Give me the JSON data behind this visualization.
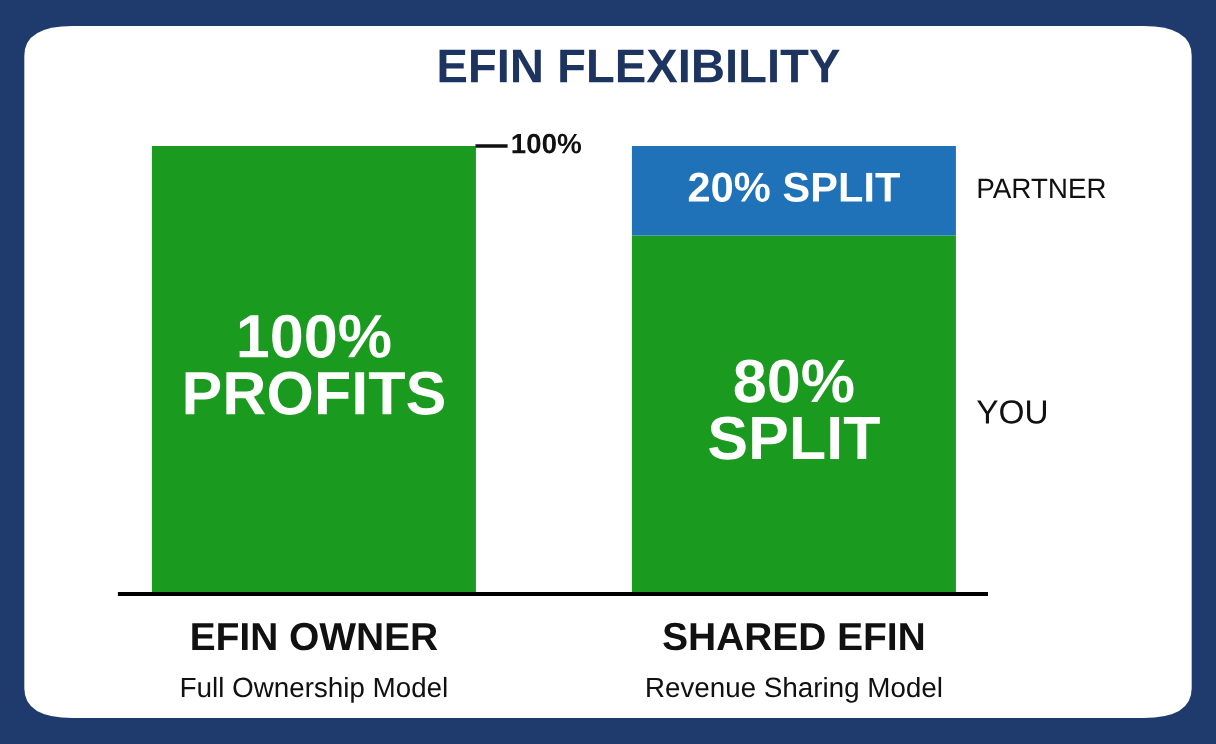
{
  "chart_data": {
    "type": "bar",
    "title": "EFIN FLEXIBILITY",
    "stacked": true,
    "categories": [
      "EFIN OWNER",
      "SHARED EFIN"
    ],
    "series": [
      {
        "name": "YOU",
        "color": "#1a9a1f",
        "values": [
          100,
          80
        ],
        "value_labels": [
          "100%\nPROFITS",
          "80%\nSPLIT"
        ]
      },
      {
        "name": "PARTNER",
        "color": "#1f72b8",
        "values": [
          null,
          20
        ],
        "value_labels": [
          null,
          "20% SPLIT"
        ]
      }
    ],
    "annotations": [
      "Full Ownership Model",
      "Revenue Sharing Model",
      "100%"
    ],
    "grid": false,
    "legend": false
  }
}
